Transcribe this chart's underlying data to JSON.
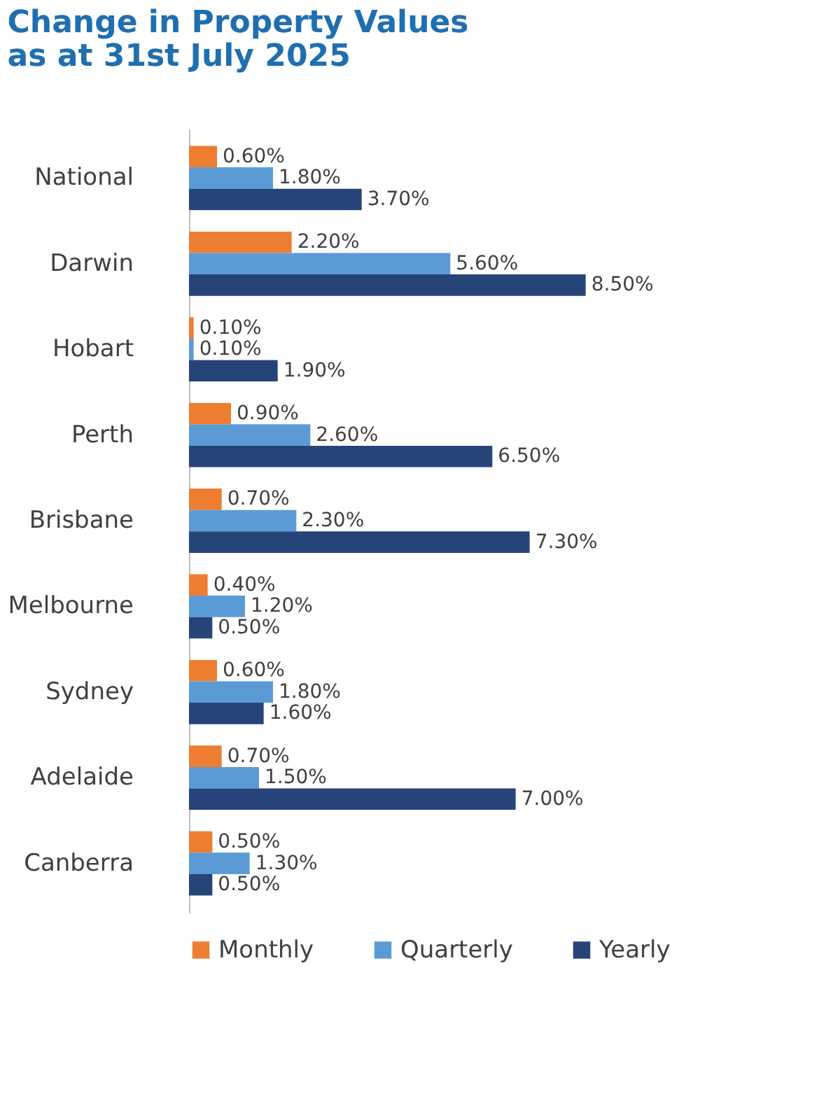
{
  "chart_data": {
    "type": "bar",
    "orientation": "horizontal",
    "title": "Change in Property Values\nas at 31st July 2025",
    "categories": [
      "National",
      "Darwin",
      "Hobart",
      "Perth",
      "Brisbane",
      "Melbourne",
      "Sydney",
      "Adelaide",
      "Canberra"
    ],
    "series": [
      {
        "name": "Monthly",
        "color": "#ed7d31",
        "values": [
          0.6,
          2.2,
          0.1,
          0.9,
          0.7,
          0.4,
          0.6,
          0.7,
          0.5
        ],
        "value_labels": [
          "0.60%",
          "2.20%",
          "0.10%",
          "0.90%",
          "0.70%",
          "0.40%",
          "0.60%",
          "0.70%",
          "0.50%"
        ]
      },
      {
        "name": "Quarterly",
        "color": "#5b9bd5",
        "values": [
          1.8,
          5.6,
          0.1,
          2.6,
          2.3,
          1.2,
          1.8,
          1.5,
          1.3
        ],
        "value_labels": [
          "1.80%",
          "5.60%",
          "0.10%",
          "2.60%",
          "2.30%",
          "1.20%",
          "1.80%",
          "1.50%",
          "1.30%"
        ]
      },
      {
        "name": "Yearly",
        "color": "#264478",
        "values": [
          3.7,
          8.5,
          1.9,
          6.5,
          7.3,
          0.5,
          1.6,
          7.0,
          0.5
        ],
        "value_labels": [
          "3.70%",
          "8.50%",
          "1.90%",
          "6.50%",
          "7.30%",
          "0.50%",
          "1.60%",
          "7.00%",
          "0.50%"
        ]
      }
    ],
    "legend": "bottom"
  }
}
